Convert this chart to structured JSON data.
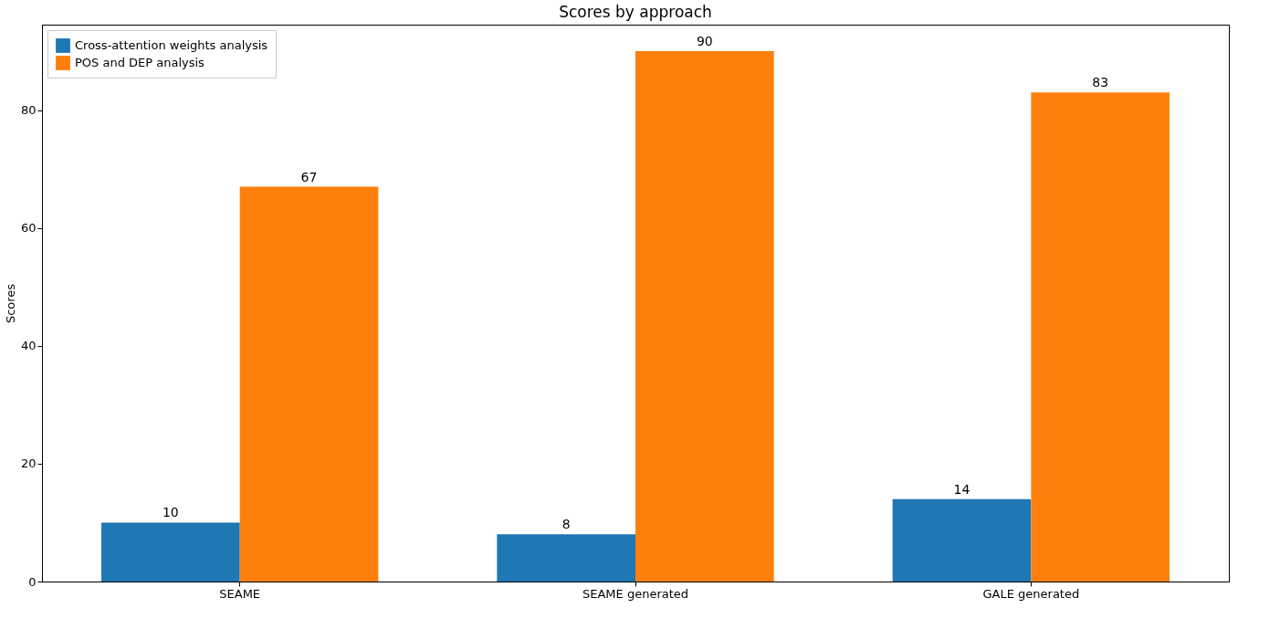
{
  "chart_data": {
    "type": "bar",
    "title": "Scores by approach",
    "ylabel": "Scores",
    "categories": [
      "SEAME",
      "SEAME generated",
      "GALE generated"
    ],
    "series": [
      {
        "name": "Cross-attention weights analysis",
        "color": "#1f77b4",
        "values": [
          10,
          8,
          14
        ]
      },
      {
        "name": "POS and DEP analysis",
        "color": "#ff7f0e",
        "values": [
          67,
          90,
          83
        ]
      }
    ],
    "ylim": [
      0,
      94.5
    ],
    "yticks": [
      0,
      20,
      40,
      60,
      80
    ],
    "grid": false,
    "legend": "top left",
    "data_labels": true
  }
}
